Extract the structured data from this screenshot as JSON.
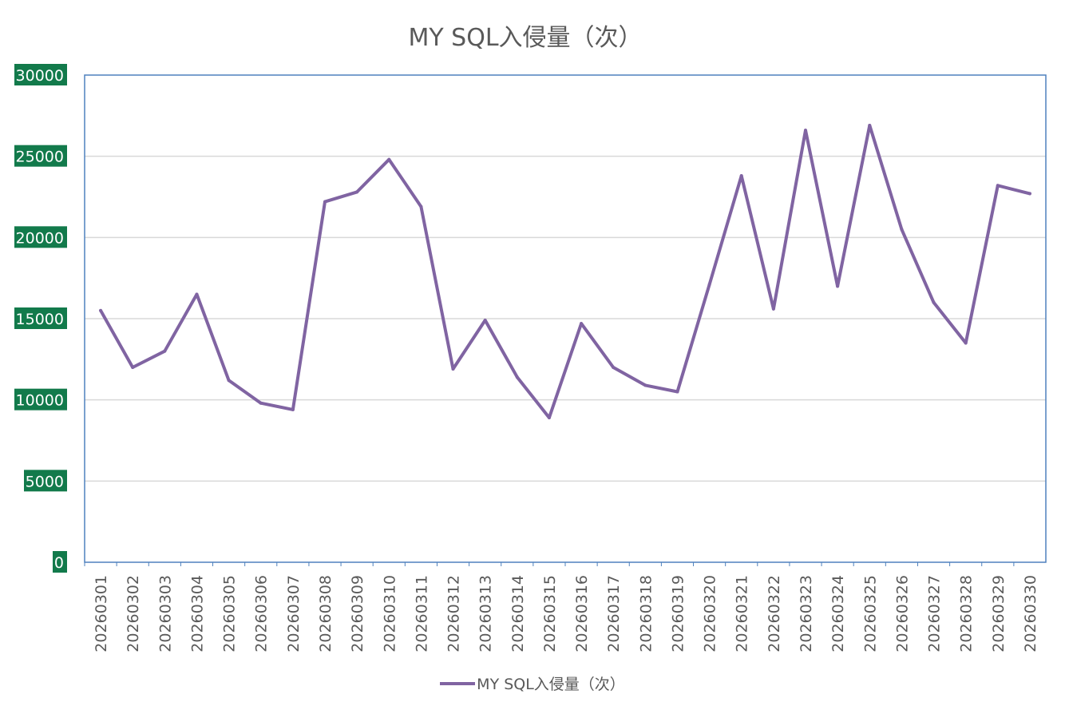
{
  "chart_data": {
    "type": "line",
    "title": "MY SQL入侵量（次）",
    "categories": [
      "20260301",
      "20260302",
      "20260303",
      "20260304",
      "20260305",
      "20260306",
      "20260307",
      "20260308",
      "20260309",
      "20260310",
      "20260311",
      "20260312",
      "20260313",
      "20260314",
      "20260315",
      "20260316",
      "20260317",
      "20260318",
      "20260319",
      "20260320",
      "20260321",
      "20260322",
      "20260323",
      "20260324",
      "20260325",
      "20260326",
      "20260327",
      "20260328",
      "20260329",
      "20260330"
    ],
    "series": [
      {
        "name": "MY SQL入侵量（次）",
        "color": "#8064a2",
        "values": [
          15500,
          12000,
          13000,
          16500,
          11200,
          9800,
          9400,
          22200,
          22800,
          24800,
          21900,
          11900,
          14900,
          11400,
          8900,
          14700,
          12000,
          10900,
          10500,
          17100,
          23800,
          15600,
          26600,
          17000,
          26900,
          20500,
          16000,
          13500,
          23200,
          22700
        ]
      }
    ],
    "ylim": [
      0,
      30000
    ],
    "yticks": [
      0,
      5000,
      10000,
      15000,
      20000,
      25000,
      30000
    ],
    "xlabel": "",
    "ylabel": "",
    "grid": true,
    "legend": "bottom",
    "colors": {
      "tick_label_bg": "#127a4b",
      "tick_label_text": "#ffffff",
      "plot_border": "#4f81bd",
      "gridline": "#d9d9d9",
      "title_text": "#595959"
    }
  }
}
